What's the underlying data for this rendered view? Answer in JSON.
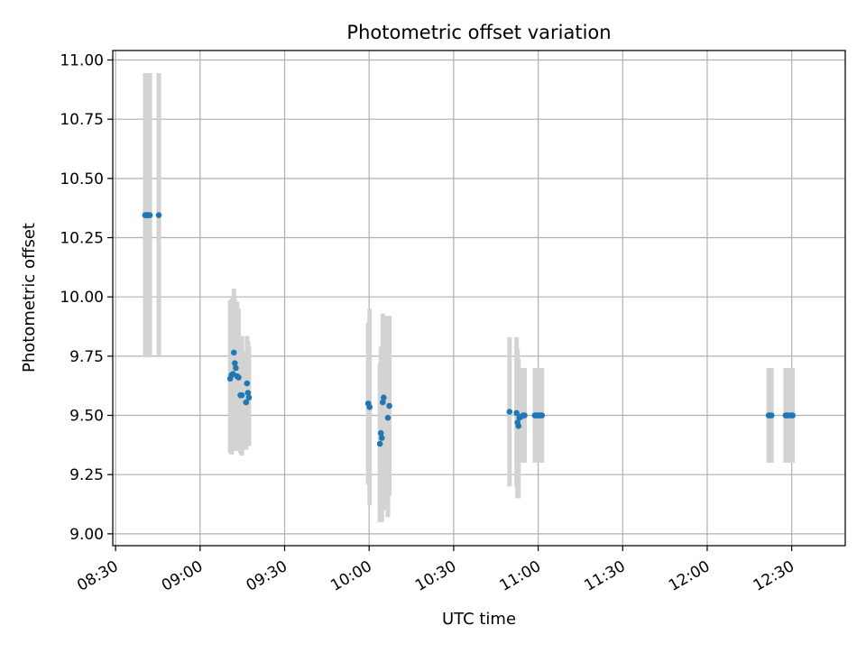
{
  "chart_data": {
    "type": "scatter",
    "title": "Photometric offset variation",
    "xlabel": "UTC time",
    "ylabel": "Photometric offset",
    "xlim": [
      "08:29",
      "12:49"
    ],
    "ylim": [
      8.95,
      11.04
    ],
    "x_ticks": [
      "08:30",
      "09:00",
      "09:30",
      "10:00",
      "10:30",
      "11:00",
      "11:30",
      "12:00",
      "12:30"
    ],
    "y_ticks": [
      "9.00",
      "9.25",
      "9.50",
      "9.75",
      "10.00",
      "10.25",
      "10.50",
      "10.75",
      "11.00"
    ],
    "grid": true,
    "colors": {
      "points": "#1f77b4",
      "error_bars": "#d3d3d3",
      "grid": "#b0b0b0",
      "axes": "#000000"
    },
    "series": [
      {
        "x": [
          "08:40:30",
          "08:40:50",
          "08:41:10",
          "08:41:30",
          "08:41:50",
          "08:42:10",
          "08:45:20",
          "09:10:40",
          "09:11:10",
          "09:11:40",
          "09:12:00",
          "09:12:20",
          "09:12:40",
          "09:13:10",
          "09:13:40",
          "09:14:20",
          "09:14:50",
          "09:16:20",
          "09:16:40",
          "09:17:00",
          "09:17:20",
          "09:59:40",
          "10:00:10",
          "10:03:50",
          "10:04:10",
          "10:04:30",
          "10:04:50",
          "10:05:10",
          "10:06:40",
          "10:07:10",
          "10:49:50",
          "10:52:20",
          "10:52:40",
          "10:53:00",
          "10:53:20",
          "10:54:00",
          "10:54:40",
          "10:55:10",
          "10:58:50",
          "10:59:20",
          "10:59:50",
          "11:00:20",
          "11:00:50",
          "11:01:20",
          "12:21:50",
          "12:22:20",
          "12:22:50",
          "12:27:50",
          "12:28:20",
          "12:28:50",
          "12:29:50",
          "12:30:20"
        ],
        "y": [
          10.345,
          10.345,
          10.345,
          10.345,
          10.345,
          10.345,
          10.345,
          9.655,
          9.67,
          9.675,
          9.765,
          9.72,
          9.7,
          9.665,
          9.66,
          9.585,
          9.585,
          9.555,
          9.635,
          9.595,
          9.575,
          9.55,
          9.535,
          9.38,
          9.425,
          9.405,
          9.555,
          9.575,
          9.49,
          9.54,
          9.515,
          9.51,
          9.47,
          9.455,
          9.49,
          9.495,
          9.5,
          9.5,
          9.5,
          9.5,
          9.5,
          9.5,
          9.5,
          9.5,
          9.5,
          9.5,
          9.5,
          9.5,
          9.5,
          9.5,
          9.5,
          9.5
        ],
        "yerr_low": [
          9.745,
          9.745,
          9.745,
          9.745,
          9.745,
          9.745,
          9.745,
          9.34,
          9.335,
          9.35,
          9.43,
          9.44,
          9.43,
          9.35,
          9.375,
          9.34,
          9.33,
          9.355,
          9.375,
          9.375,
          9.37,
          9.21,
          9.12,
          9.05,
          9.05,
          9.05,
          9.2,
          9.1,
          9.07,
          9.16,
          9.2,
          9.2,
          9.15,
          9.15,
          9.3,
          9.3,
          9.3,
          9.3,
          9.3,
          9.3,
          9.3,
          9.3,
          9.3,
          9.3,
          9.3,
          9.3,
          9.3,
          9.3,
          9.3,
          9.3,
          9.3,
          9.3
        ],
        "yerr_high": [
          10.945,
          10.945,
          10.945,
          10.945,
          10.945,
          10.945,
          10.945,
          9.985,
          9.99,
          10.0,
          10.035,
          9.99,
          9.97,
          9.98,
          9.95,
          9.83,
          9.835,
          9.77,
          9.835,
          9.815,
          9.79,
          9.89,
          9.95,
          9.72,
          9.79,
          9.76,
          9.93,
          9.92,
          9.92,
          9.92,
          9.83,
          9.83,
          9.78,
          9.74,
          9.68,
          9.7,
          9.7,
          9.7,
          9.7,
          9.7,
          9.7,
          9.7,
          9.7,
          9.7,
          9.7,
          9.7,
          9.7,
          9.7,
          9.7,
          9.7,
          9.7,
          9.7
        ]
      }
    ]
  }
}
